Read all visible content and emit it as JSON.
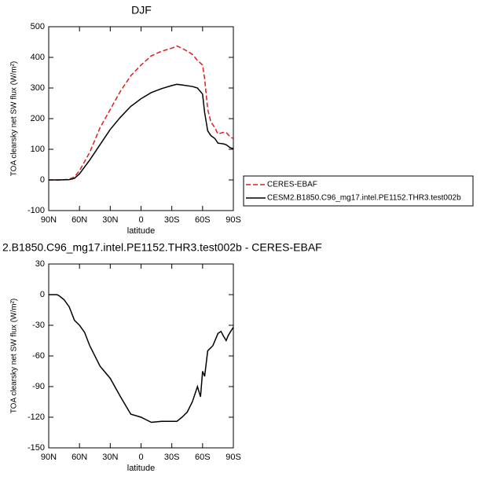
{
  "chart_data": [
    {
      "type": "line",
      "title": "DJF",
      "xlabel": "latitude",
      "ylabel": "TOA clearsky net SW flux (W/m²)",
      "x": [
        90,
        80,
        70,
        65,
        60,
        50,
        40,
        30,
        20,
        10,
        0,
        -10,
        -20,
        -30,
        -35,
        -40,
        -50,
        -55,
        -60,
        -62,
        -65,
        -68,
        -72,
        -75,
        -80,
        -83,
        -87,
        -90
      ],
      "series": [
        {
          "name": "CERES-EBAF",
          "color": "#e41a1c",
          "dash": true,
          "values": [
            0,
            0,
            2,
            10,
            30,
            90,
            170,
            230,
            290,
            340,
            375,
            405,
            420,
            430,
            437,
            430,
            410,
            390,
            375,
            330,
            230,
            190,
            170,
            150,
            155,
            155,
            140,
            135
          ]
        },
        {
          "name": "CESM2.B1850.C96_mg17.intel.PE1152.THR3.test002b",
          "color": "#000000",
          "dash": false,
          "values": [
            0,
            0,
            1,
            5,
            20,
            65,
            115,
            165,
            205,
            240,
            265,
            285,
            298,
            308,
            312,
            310,
            305,
            300,
            280,
            220,
            160,
            145,
            135,
            120,
            118,
            115,
            105,
            102
          ]
        }
      ],
      "xlim": [
        90,
        -90
      ],
      "xticks": [
        {
          "value": 90,
          "label": "90N"
        },
        {
          "value": 60,
          "label": "60N"
        },
        {
          "value": 30,
          "label": "30N"
        },
        0,
        {
          "value": -30,
          "label": "30S"
        },
        {
          "value": -60,
          "label": "60S"
        },
        {
          "value": -90,
          "label": "90S"
        }
      ],
      "ylim": [
        -100,
        500
      ],
      "yticks": [
        -100,
        0,
        100,
        200,
        300,
        400,
        500
      ],
      "legend": "right"
    },
    {
      "type": "line",
      "title": "2.B1850.C96_mg17.intel.PE1152.THR3.test002b - CERES-EBAF",
      "xlabel": "latitude",
      "ylabel": "TOA clearsky net SW flux (W/m²)",
      "x": [
        90,
        82,
        80,
        75,
        70,
        65,
        60,
        55,
        50,
        40,
        30,
        20,
        10,
        0,
        -10,
        -20,
        -30,
        -35,
        -40,
        -45,
        -50,
        -55,
        -58,
        -60,
        -62,
        -65,
        -70,
        -75,
        -78,
        -80,
        -83,
        -85,
        -88,
        -90
      ],
      "series": [
        {
          "color": "#000000",
          "dash": false,
          "values": [
            0,
            0,
            -1,
            -5,
            -12,
            -25,
            -30,
            -37,
            -50,
            -70,
            -82,
            -100,
            -117,
            -120,
            -125,
            -124,
            -124,
            -124,
            -120,
            -115,
            -105,
            -90,
            -100,
            -75,
            -80,
            -55,
            -50,
            -38,
            -36,
            -40,
            -45,
            -40,
            -35,
            -32
          ]
        }
      ],
      "xlim": [
        90,
        -90
      ],
      "xticks": [
        {
          "value": 90,
          "label": "90N"
        },
        {
          "value": 60,
          "label": "60N"
        },
        {
          "value": 30,
          "label": "30N"
        },
        0,
        {
          "value": -30,
          "label": "30S"
        },
        {
          "value": -60,
          "label": "60S"
        },
        {
          "value": -90,
          "label": "90S"
        }
      ],
      "ylim": [
        -150,
        30
      ],
      "yticks": [
        -150,
        -120,
        -90,
        -60,
        -30,
        0,
        30
      ]
    }
  ]
}
